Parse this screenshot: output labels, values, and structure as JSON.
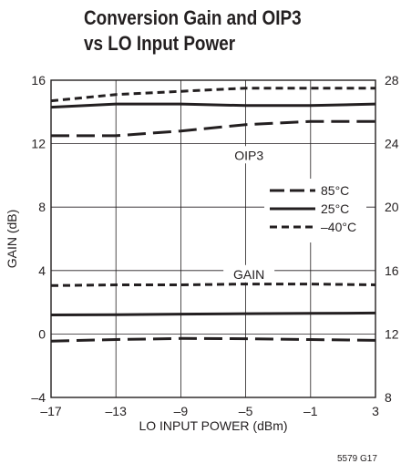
{
  "title_lines": [
    "Conversion Gain and OIP3",
    "vs LO Input Power"
  ],
  "figure_number": "5579 G17",
  "chart_data": {
    "type": "line",
    "xlabel": "LO INPUT POWER (dBm)",
    "ylabel": "GAIN (dB)",
    "y2label": "",
    "xlim": [
      -17,
      3
    ],
    "ylim": [
      -4,
      16
    ],
    "y2lim": [
      8,
      28
    ],
    "x_ticks": [
      -17,
      -13,
      -9,
      -5,
      -1,
      3
    ],
    "x_tick_labels": [
      "–17",
      "–13",
      "–9",
      "–5",
      "–1",
      "3"
    ],
    "y_ticks": [
      -4,
      0,
      4,
      8,
      12,
      16
    ],
    "y_tick_labels": [
      "–4",
      "0",
      "4",
      "8",
      "12",
      "16"
    ],
    "y2_ticks": [
      8,
      12,
      16,
      20,
      24,
      28
    ],
    "y2_tick_labels": [
      "8",
      "12",
      "16",
      "20",
      "24",
      "28"
    ],
    "grid": true,
    "legend": {
      "placement": "center-right",
      "entries": [
        {
          "label": "85°C",
          "style": "long-dash"
        },
        {
          "label": "25°C",
          "style": "solid"
        },
        {
          "label": "–40°C",
          "style": "short-dash"
        }
      ]
    },
    "annotations": [
      {
        "text": "OIP3",
        "x": -4.8,
        "y": 11.1
      },
      {
        "text": "GAIN",
        "x": -4.8,
        "y": 3.6
      }
    ],
    "series": [
      {
        "group": "OIP3",
        "name": "–40°C",
        "style": "short-dash",
        "axis": "right",
        "x": [
          -17,
          -13,
          -9,
          -5,
          -1,
          3
        ],
        "y": [
          26.7,
          27.1,
          27.3,
          27.5,
          27.5,
          27.5
        ]
      },
      {
        "group": "OIP3",
        "name": "25°C",
        "style": "solid",
        "axis": "right",
        "x": [
          -17,
          -13,
          -9,
          -5,
          -3.5,
          -1,
          3
        ],
        "y": [
          26.3,
          26.5,
          26.5,
          26.4,
          26.4,
          26.4,
          26.5
        ]
      },
      {
        "group": "OIP3",
        "name": "85°C",
        "style": "long-dash",
        "axis": "right",
        "x": [
          -17,
          -13,
          -9,
          -5,
          -1,
          3
        ],
        "y": [
          24.5,
          24.5,
          24.8,
          25.2,
          25.4,
          25.4
        ]
      },
      {
        "group": "GAIN",
        "name": "–40°C",
        "style": "short-dash",
        "axis": "left",
        "x": [
          -17,
          -13,
          -9,
          -5,
          -1,
          3
        ],
        "y": [
          3.05,
          3.1,
          3.1,
          3.15,
          3.15,
          3.1
        ]
      },
      {
        "group": "GAIN",
        "name": "25°C",
        "style": "solid",
        "axis": "left",
        "x": [
          -17,
          -13,
          -9,
          -5,
          -1,
          3
        ],
        "y": [
          1.2,
          1.22,
          1.25,
          1.28,
          1.3,
          1.32
        ]
      },
      {
        "group": "GAIN",
        "name": "85°C",
        "style": "long-dash",
        "axis": "left",
        "x": [
          -17,
          -13,
          -9,
          -5,
          -1,
          3
        ],
        "y": [
          -0.45,
          -0.35,
          -0.28,
          -0.3,
          -0.35,
          -0.4
        ]
      }
    ]
  }
}
